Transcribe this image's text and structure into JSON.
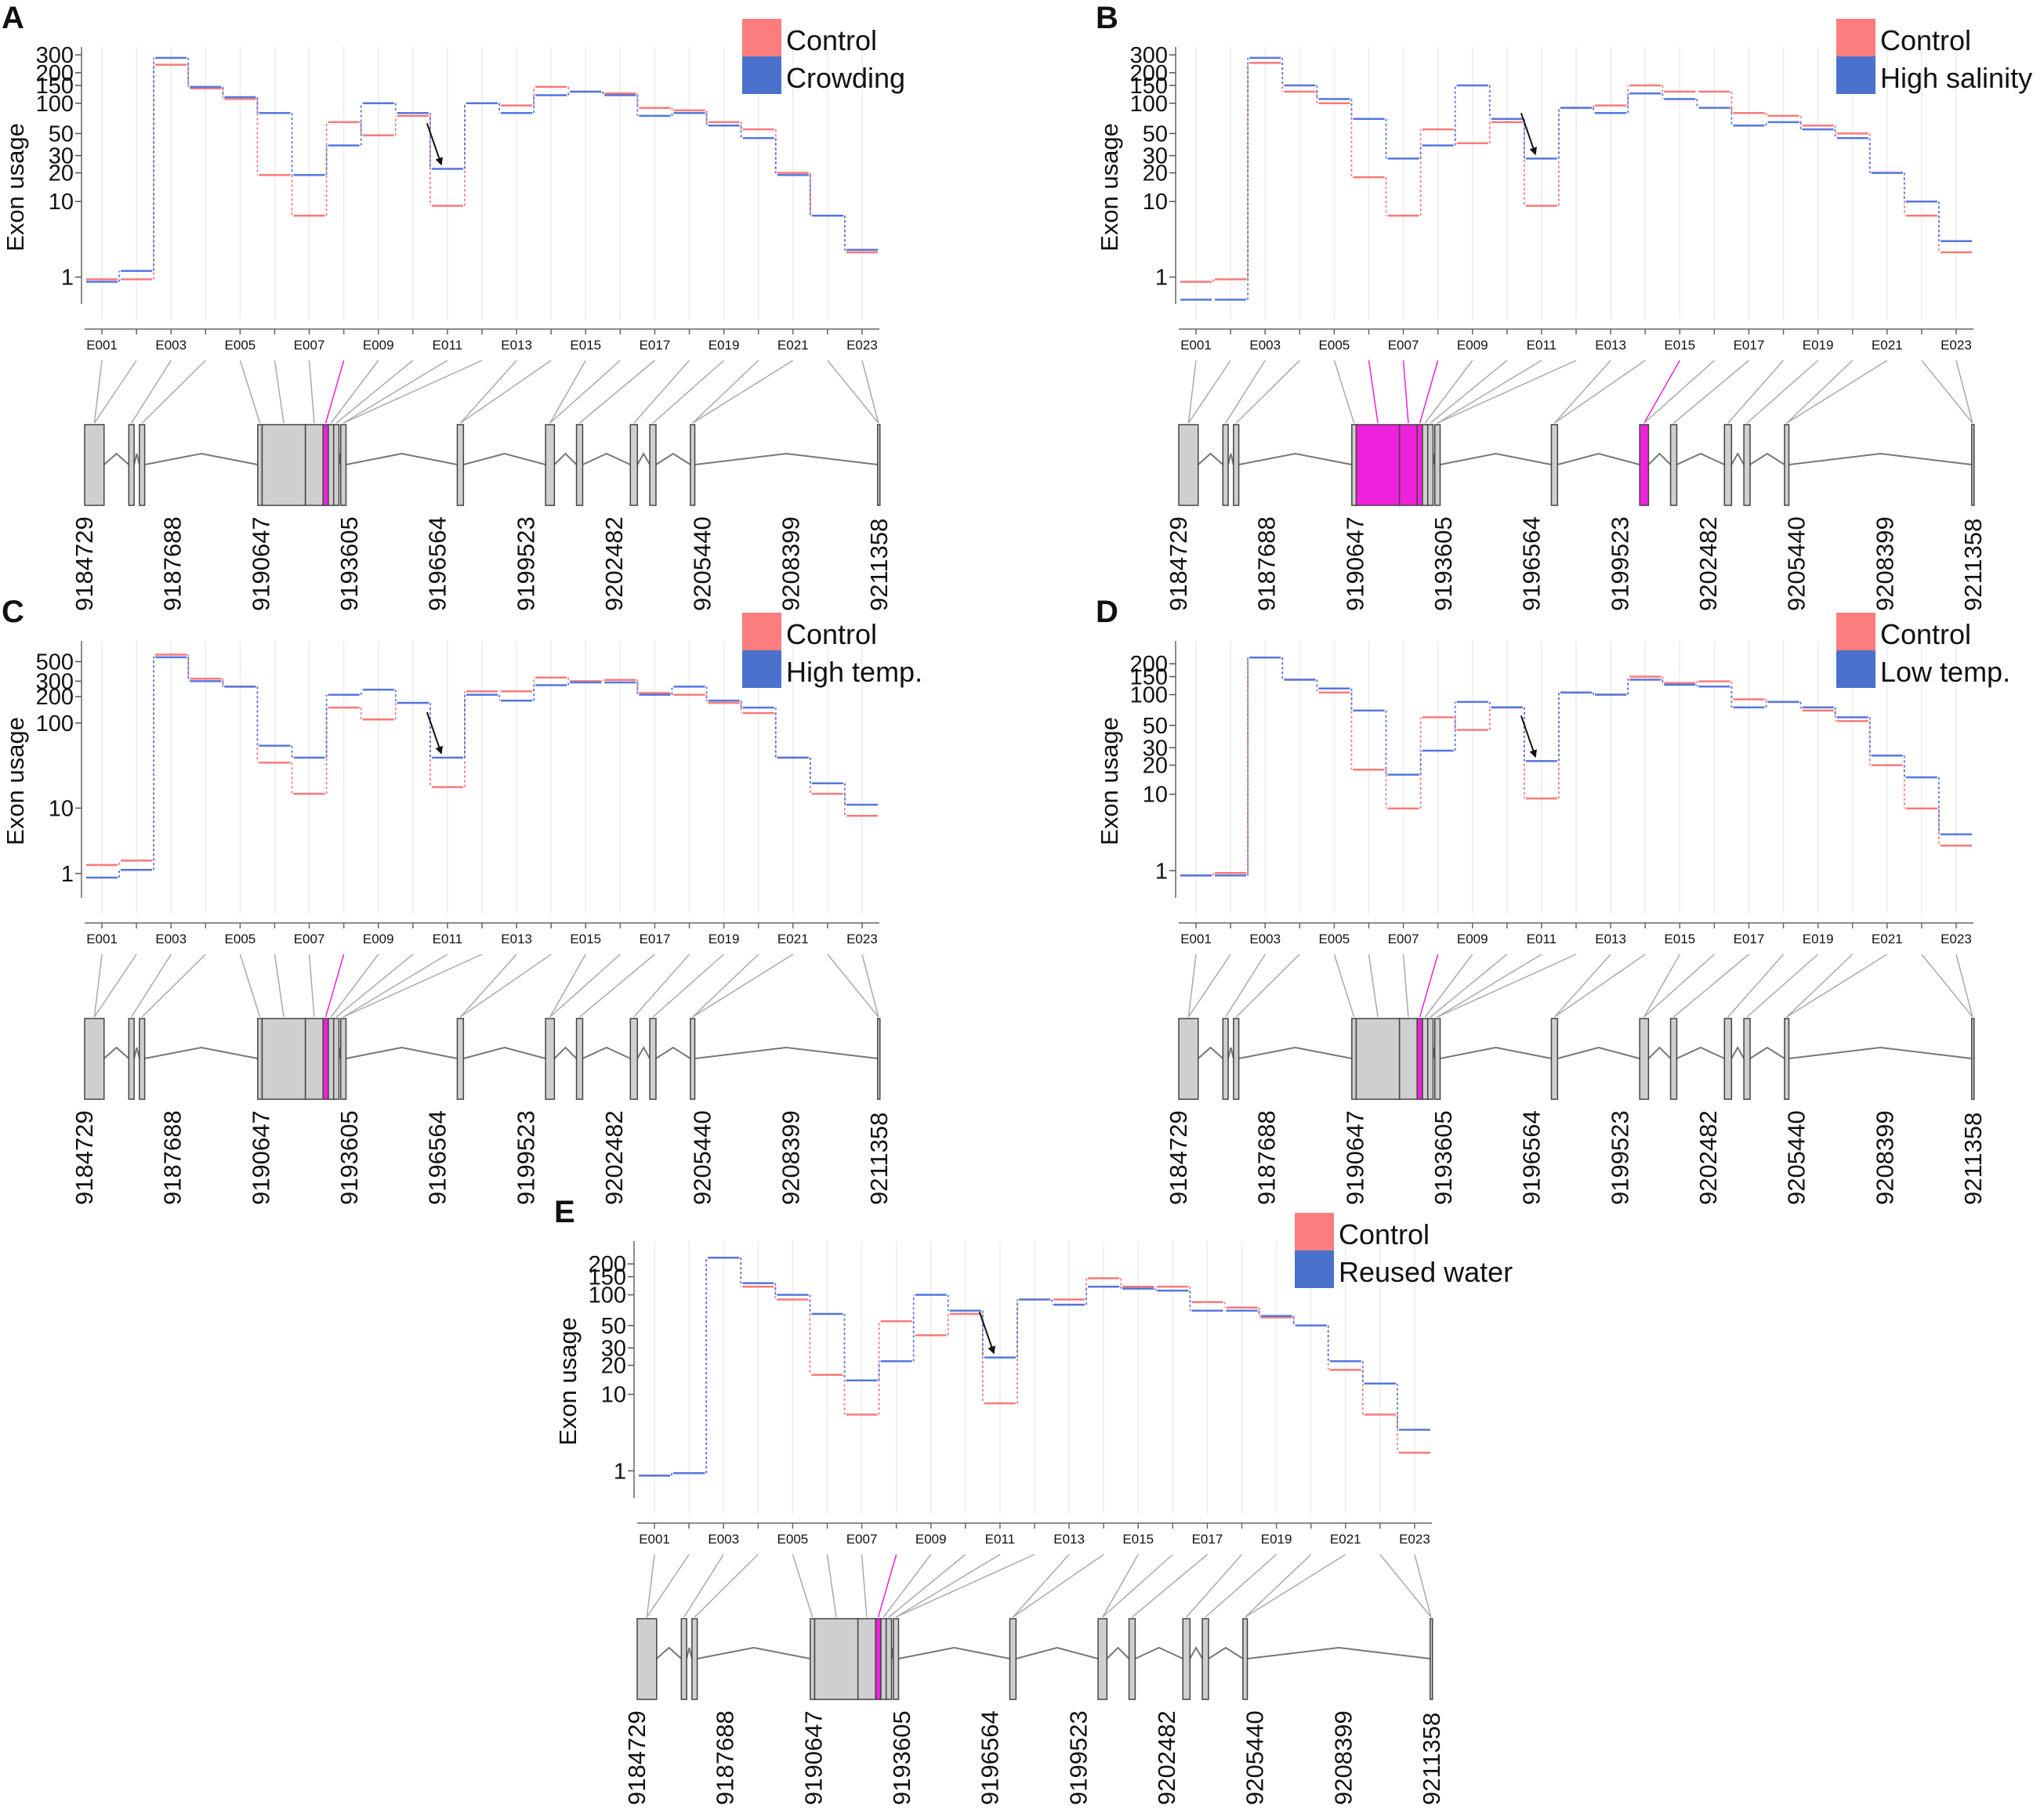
{
  "figure": {
    "colors": {
      "control": "#f87a7a",
      "treatment": "#5577dd",
      "control_legend": "#fb7d7d",
      "treatment_legend": "#4a72cc",
      "exon_box": "#cfcfcf",
      "highlight": "#ee22dd",
      "grid": "#ececec"
    }
  },
  "chart_data": [
    {
      "panel": "A",
      "type": "line",
      "ylabel": "Exon usage",
      "yscale": "log1p",
      "yticks": [
        1,
        10,
        20,
        30,
        50,
        100,
        150,
        200,
        300
      ],
      "ylim": [
        0,
        300
      ],
      "x_tick_labels": [
        "E001",
        "E003",
        "E005",
        "E007",
        "E009",
        "E011",
        "E013",
        "E015",
        "E017",
        "E019",
        "E021",
        "E023"
      ],
      "legend": [
        "Control",
        "Crowding"
      ],
      "series": [
        {
          "name": "Control",
          "values": [
            0.9,
            0.9,
            240,
            140,
            110,
            19,
            7,
            65,
            48,
            75,
            9,
            100,
            95,
            145,
            130,
            125,
            90,
            85,
            65,
            55,
            20,
            7,
            2.5
          ]
        },
        {
          "name": "Crowding",
          "values": [
            0.8,
            1.3,
            280,
            145,
            115,
            80,
            19,
            38,
            100,
            80,
            22,
            100,
            80,
            120,
            130,
            120,
            75,
            80,
            60,
            45,
            19,
            7,
            2.7
          ]
        }
      ],
      "arrow_exon": "E011",
      "gene_model": {
        "coords": [
          "9184729",
          "9187688",
          "9190647",
          "9193605",
          "9196564",
          "9199523",
          "9202482",
          "9205440",
          "9208399",
          "9211358"
        ],
        "highlight_exons": [
          7
        ]
      }
    },
    {
      "panel": "B",
      "type": "line",
      "ylabel": "Exon usage",
      "yscale": "log1p",
      "yticks": [
        1,
        10,
        20,
        30,
        50,
        100,
        150,
        200,
        300
      ],
      "ylim": [
        0,
        300
      ],
      "x_tick_labels": [
        "E001",
        "E003",
        "E005",
        "E007",
        "E009",
        "E011",
        "E013",
        "E015",
        "E017",
        "E019",
        "E021",
        "E023"
      ],
      "legend": [
        "Control",
        "High salinity"
      ],
      "series": [
        {
          "name": "Control",
          "values": [
            0.8,
            0.9,
            250,
            130,
            100,
            18,
            7,
            55,
            40,
            65,
            9,
            90,
            95,
            150,
            130,
            130,
            80,
            75,
            60,
            50,
            20,
            7,
            2.5
          ]
        },
        {
          "name": "High salinity",
          "values": [
            0.2,
            0.2,
            280,
            150,
            110,
            70,
            28,
            38,
            150,
            70,
            28,
            90,
            80,
            125,
            110,
            90,
            60,
            65,
            55,
            45,
            20,
            10,
            3.5
          ]
        }
      ],
      "arrow_exon": "E011",
      "gene_model": {
        "coords": [
          "9184729",
          "9187688",
          "9190647",
          "9193605",
          "9196564",
          "9199523",
          "9202482",
          "9205440",
          "9208399",
          "9211358"
        ],
        "highlight_exons": [
          5,
          6,
          7,
          14
        ]
      }
    },
    {
      "panel": "C",
      "type": "line",
      "ylabel": "Exon usage",
      "yscale": "log1p",
      "yticks": [
        1,
        10,
        100,
        200,
        300,
        500
      ],
      "ylim": [
        0,
        700
      ],
      "x_tick_labels": [
        "E001",
        "E003",
        "E005",
        "E007",
        "E009",
        "E011",
        "E013",
        "E015",
        "E017",
        "E019",
        "E021",
        "E023"
      ],
      "legend": [
        "Control",
        "High temp."
      ],
      "series": [
        {
          "name": "Control",
          "values": [
            1.5,
            1.8,
            600,
            320,
            260,
            35,
            15,
            150,
            110,
            170,
            18,
            230,
            230,
            330,
            300,
            310,
            220,
            210,
            170,
            130,
            40,
            15,
            8
          ]
        },
        {
          "name": "High temp.",
          "values": [
            0.8,
            1.2,
            560,
            300,
            260,
            55,
            40,
            210,
            240,
            170,
            40,
            210,
            180,
            270,
            290,
            290,
            210,
            260,
            180,
            150,
            40,
            20,
            11
          ]
        }
      ],
      "arrow_exon": "E011",
      "gene_model": {
        "coords": [
          "9184729",
          "9187688",
          "9190647",
          "9193605",
          "9196564",
          "9199523",
          "9202482",
          "9205440",
          "9208399",
          "9211358"
        ],
        "highlight_exons": [
          7
        ]
      }
    },
    {
      "panel": "D",
      "type": "line",
      "ylabel": "Exon usage",
      "yscale": "log1p",
      "yticks": [
        1,
        10,
        20,
        30,
        50,
        100,
        150,
        200
      ],
      "ylim": [
        0,
        280
      ],
      "x_tick_labels": [
        "E001",
        "E003",
        "E005",
        "E007",
        "E009",
        "E011",
        "E013",
        "E015",
        "E017",
        "E019",
        "E021",
        "E023"
      ],
      "legend": [
        "Control",
        "Low temp."
      ],
      "series": [
        {
          "name": "Control",
          "values": [
            0.8,
            0.9,
            230,
            140,
            105,
            18,
            7,
            60,
            45,
            75,
            9,
            105,
            100,
            150,
            130,
            135,
            90,
            85,
            70,
            55,
            20,
            7,
            2.5
          ]
        },
        {
          "name": "Low temp.",
          "values": [
            0.8,
            0.8,
            230,
            140,
            115,
            70,
            16,
            28,
            85,
            75,
            22,
            105,
            100,
            140,
            125,
            120,
            75,
            85,
            75,
            60,
            25,
            15,
            3.5
          ]
        }
      ],
      "arrow_exon": "E011",
      "gene_model": {
        "coords": [
          "9184729",
          "9187688",
          "9190647",
          "9193605",
          "9196564",
          "9199523",
          "9202482",
          "9205440",
          "9208399",
          "9211358"
        ],
        "highlight_exons": [
          7
        ]
      }
    },
    {
      "panel": "E",
      "type": "line",
      "ylabel": "Exon usage",
      "yscale": "log1p",
      "yticks": [
        1,
        10,
        20,
        30,
        50,
        100,
        150,
        200
      ],
      "ylim": [
        0,
        280
      ],
      "x_tick_labels": [
        "E001",
        "E003",
        "E005",
        "E007",
        "E009",
        "E011",
        "E013",
        "E015",
        "E017",
        "E019",
        "E021",
        "E023"
      ],
      "legend": [
        "Control",
        "Reused water"
      ],
      "series": [
        {
          "name": "Control",
          "values": [
            0.8,
            0.9,
            230,
            120,
            90,
            16,
            6,
            55,
            40,
            65,
            8,
            90,
            90,
            145,
            120,
            120,
            85,
            75,
            60,
            50,
            18,
            6,
            2
          ]
        },
        {
          "name": "Reused water",
          "values": [
            0.8,
            0.9,
            230,
            130,
            100,
            65,
            14,
            22,
            100,
            70,
            24,
            90,
            80,
            120,
            115,
            110,
            70,
            70,
            62,
            50,
            22,
            13,
            4
          ]
        }
      ],
      "arrow_exon": "E011",
      "gene_model": {
        "coords": [
          "9184729",
          "9187688",
          "9190647",
          "9193605",
          "9196564",
          "9199523",
          "9202482",
          "9205440",
          "9208399",
          "9211358"
        ],
        "highlight_exons": [
          7
        ]
      }
    }
  ]
}
